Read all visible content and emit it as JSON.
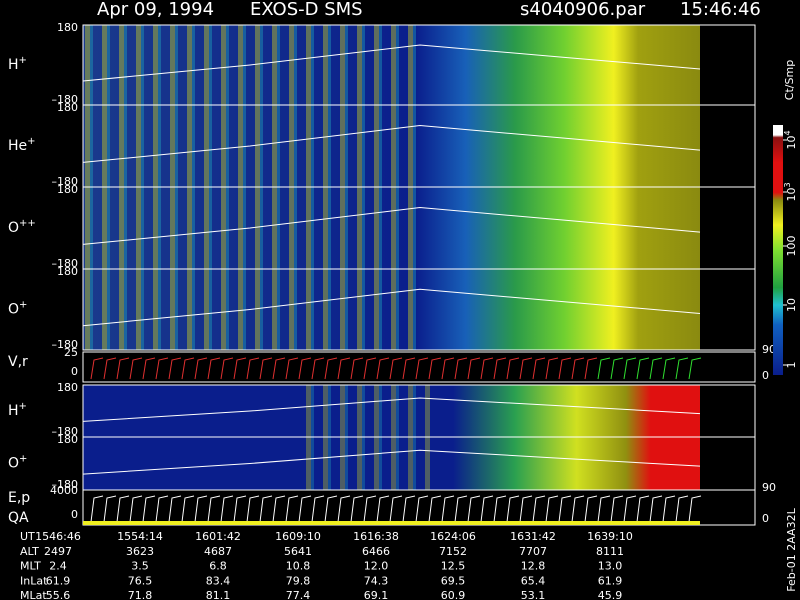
{
  "chart_data": {
    "type": "spectrogram",
    "title": "Apr 09, 1994",
    "instrument": "EXOS-D SMS",
    "file": "s4040906.par",
    "time": "15:46:46",
    "panels": [
      {
        "ion": "H",
        "charge": "+",
        "top": "180",
        "bottom": "–180"
      },
      {
        "ion": "He",
        "charge": "+",
        "top": "180",
        "bottom": "–180"
      },
      {
        "ion": "O",
        "charge": "++",
        "top": "180",
        "bottom": "–180"
      },
      {
        "ion": "O",
        "charge": "+",
        "top": "180",
        "bottom": "–180"
      },
      {
        "ion": "H",
        "charge": "+",
        "top": "180",
        "bottom": "–180"
      },
      {
        "ion": "O",
        "charge": "+",
        "top": "180",
        "bottom": "–180"
      }
    ],
    "vr": {
      "label": "V,r",
      "left": [
        "25",
        "0"
      ],
      "right": [
        "90",
        "0"
      ]
    },
    "ep": {
      "label": "E,p",
      "label2": "QA",
      "left": [
        "4000",
        "0"
      ],
      "right": [
        "90",
        "0"
      ]
    },
    "colorbar": {
      "label": "Ct/Smp",
      "ticks": [
        {
          "base": "10",
          "exp": "4"
        },
        {
          "base": "10",
          "exp": "3"
        },
        "100",
        "10",
        "1"
      ]
    },
    "table": {
      "rows": [
        {
          "name": "UT",
          "values": [
            "1546:46",
            "1554:14",
            "1601:42",
            "1609:10",
            "1616:38",
            "1624:06",
            "1631:42",
            "1639:10"
          ]
        },
        {
          "name": "ALT",
          "values": [
            "2497",
            "3623",
            "4687",
            "5641",
            "6466",
            "7152",
            "7707",
            "8111"
          ]
        },
        {
          "name": "MLT",
          "values": [
            "2.4",
            "3.5",
            "6.8",
            "10.8",
            "12.0",
            "12.5",
            "12.8",
            "13.0"
          ]
        },
        {
          "name": "InLat",
          "values": [
            "61.9",
            "76.5",
            "83.4",
            "79.8",
            "74.3",
            "69.5",
            "65.4",
            "61.9"
          ]
        },
        {
          "name": "MLat",
          "values": [
            "55.6",
            "71.8",
            "81.1",
            "77.4",
            "69.1",
            "60.9",
            "53.1",
            "45.9"
          ]
        }
      ]
    },
    "footer": "Feb-01 2AA32L"
  }
}
